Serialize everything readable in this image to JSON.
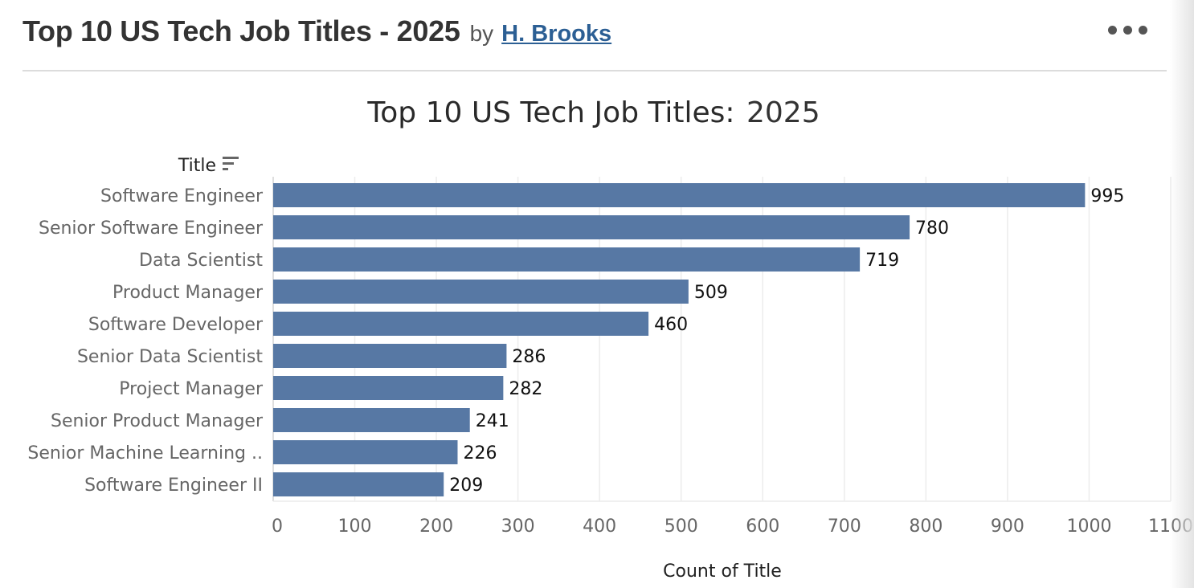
{
  "header": {
    "title": "Top 10 US Tech Job Titles - 2025",
    "by": "by",
    "author": "H. Brooks",
    "more_icon": "more-horizontal-icon"
  },
  "chart_data": {
    "type": "bar",
    "orientation": "horizontal",
    "title": "Top 10 US Tech Job Titles:",
    "title_year": "2025",
    "ylabel": "Title",
    "xlabel": "Count of Title",
    "categories": [
      "Software Engineer",
      "Senior Software Engineer",
      "Data Scientist",
      "Product Manager",
      "Software Developer",
      "Senior Data Scientist",
      "Project Manager",
      "Senior Product Manager",
      "Senior Machine Learning ..",
      "Software Engineer II"
    ],
    "values": [
      995,
      780,
      719,
      509,
      460,
      286,
      282,
      241,
      226,
      209
    ],
    "xlim": [
      0,
      1100
    ],
    "xticks": [
      0,
      100,
      200,
      300,
      400,
      500,
      600,
      700,
      800,
      900,
      1000,
      1100
    ],
    "bar_color": "#5778a4",
    "grid": true,
    "sort_icon": "sort-descending-icon"
  }
}
